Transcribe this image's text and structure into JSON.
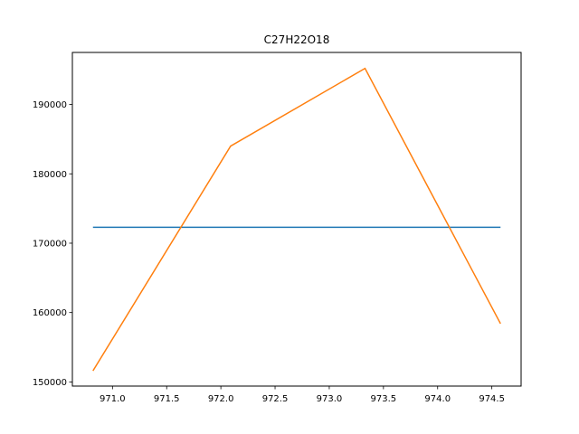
{
  "chart_data": {
    "type": "line",
    "title": "C27H22O18",
    "xlabel": "",
    "ylabel": "",
    "xlim": [
      970.63,
      974.77
    ],
    "ylim": [
      149400,
      197500
    ],
    "grid": false,
    "x_ticks": [
      971.0,
      971.5,
      972.0,
      972.5,
      973.0,
      973.5,
      974.0,
      974.5
    ],
    "x_tick_labels": [
      "971.0",
      "971.5",
      "972.0",
      "972.5",
      "973.0",
      "973.5",
      "974.0",
      "974.5"
    ],
    "y_ticks": [
      150000,
      160000,
      170000,
      180000,
      190000
    ],
    "y_tick_labels": [
      "150000",
      "160000",
      "170000",
      "180000",
      "190000"
    ],
    "series": [
      {
        "color": "#1f77b4",
        "x": [
          970.82,
          974.58
        ],
        "y": [
          172300,
          172300
        ]
      },
      {
        "color": "#ff7f0e",
        "x": [
          970.82,
          972.09,
          973.33,
          974.58
        ],
        "y": [
          151600,
          184000,
          195200,
          158400
        ]
      }
    ]
  }
}
